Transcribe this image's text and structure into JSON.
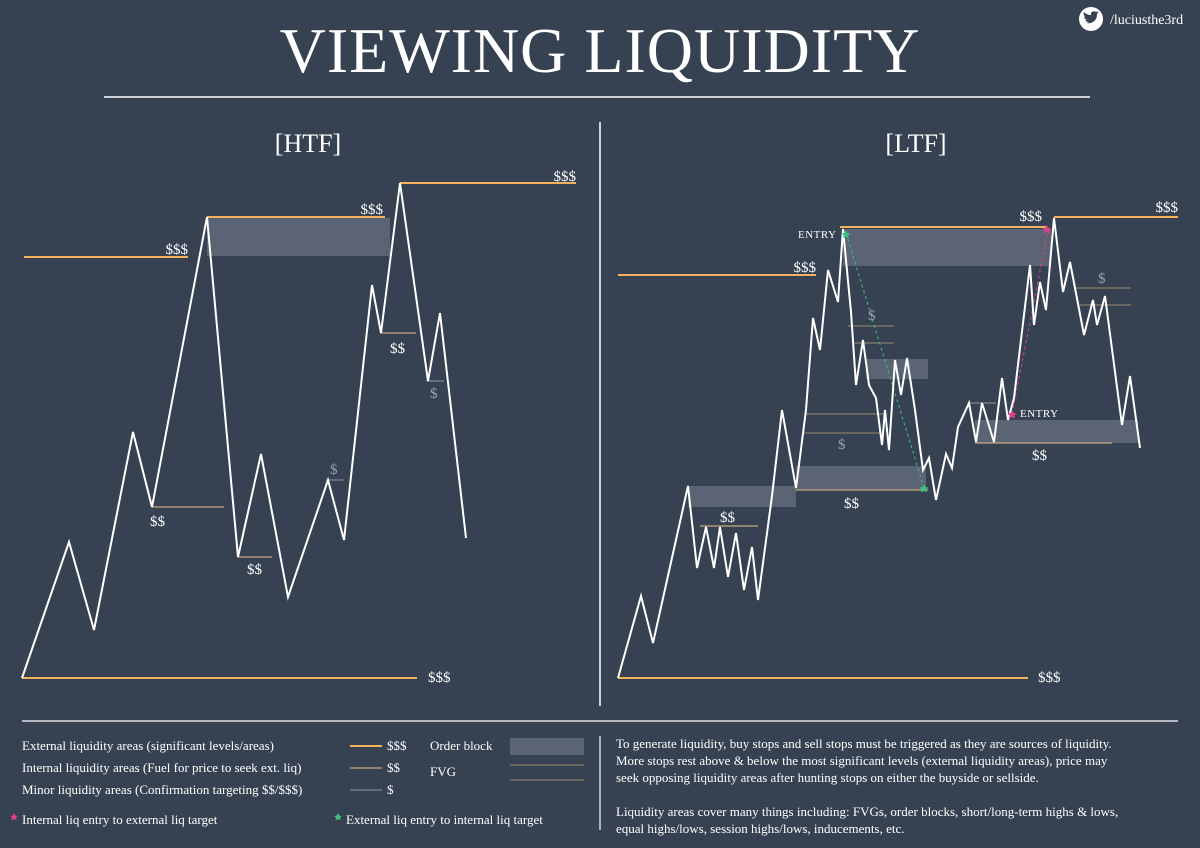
{
  "header": {
    "title": "VIEWING LIQUIDITY",
    "social_handle": "/luciusthe3rd",
    "social_icon": "twitter-bird-icon"
  },
  "colors": {
    "background": "#364252",
    "price_line": "#ffffff",
    "external_liq": "#f2b15a",
    "internal_liq": "#c7a97c",
    "minor_liq": "#8e9aa6",
    "order_block": "#5a6474",
    "fvg": "#9c8b72",
    "internal_entry_marker": "#e0408a",
    "external_entry_marker": "#3fbf7f"
  },
  "panels": {
    "htf": {
      "title": "[HTF]",
      "labels": {
        "top_right": "$$$",
        "middle_high": "$$$",
        "left_high": "$$$",
        "bottom_low": "$$$",
        "int_1": "$$",
        "int_2": "$$",
        "int_3": "$$",
        "minor_1": "$",
        "minor_2": "$"
      }
    },
    "ltf": {
      "title": "[LTF]",
      "labels": {
        "top_right": "$$$",
        "middle_high": "$$$",
        "left_high": "$$$",
        "bottom_low": "$$$",
        "int_1": "$$",
        "int_2": "$$",
        "int_3": "$$",
        "minor_1": "$",
        "minor_2": "$",
        "minor_3": "$",
        "entry_top": "ENTRY",
        "entry_mid": "ENTRY"
      }
    }
  },
  "legend": {
    "external": {
      "text": "External liquidity areas (significant levels/areas)",
      "symbol": "$$$"
    },
    "internal": {
      "text": "Internal liquidity areas (Fuel for price to seek ext. liq)",
      "symbol": "$$"
    },
    "minor": {
      "text": "Minor liquidity areas (Confirmation targeting $$/$$$)",
      "symbol": "$"
    },
    "order_block": "Order block",
    "fvg": "FVG",
    "internal_entry": "Internal liq entry to external liq target",
    "external_entry": "External liq entry to internal liq target"
  },
  "notes": {
    "p1_l1": "To generate liquidity, buy stops and sell stops must be triggered as they are sources of liquidity.",
    "p1_l2": "More stops rest above & below the most significant levels (external liquidity areas), price may",
    "p1_l3": "seek opposing liquidity areas after hunting stops on either the buyside or sellside.",
    "p2_l1": "Liquidity areas cover many things including: FVGs, order blocks, short/long-term highs & lows,",
    "p2_l2": "equal highs/lows, session highs/lows, inducements, etc."
  }
}
